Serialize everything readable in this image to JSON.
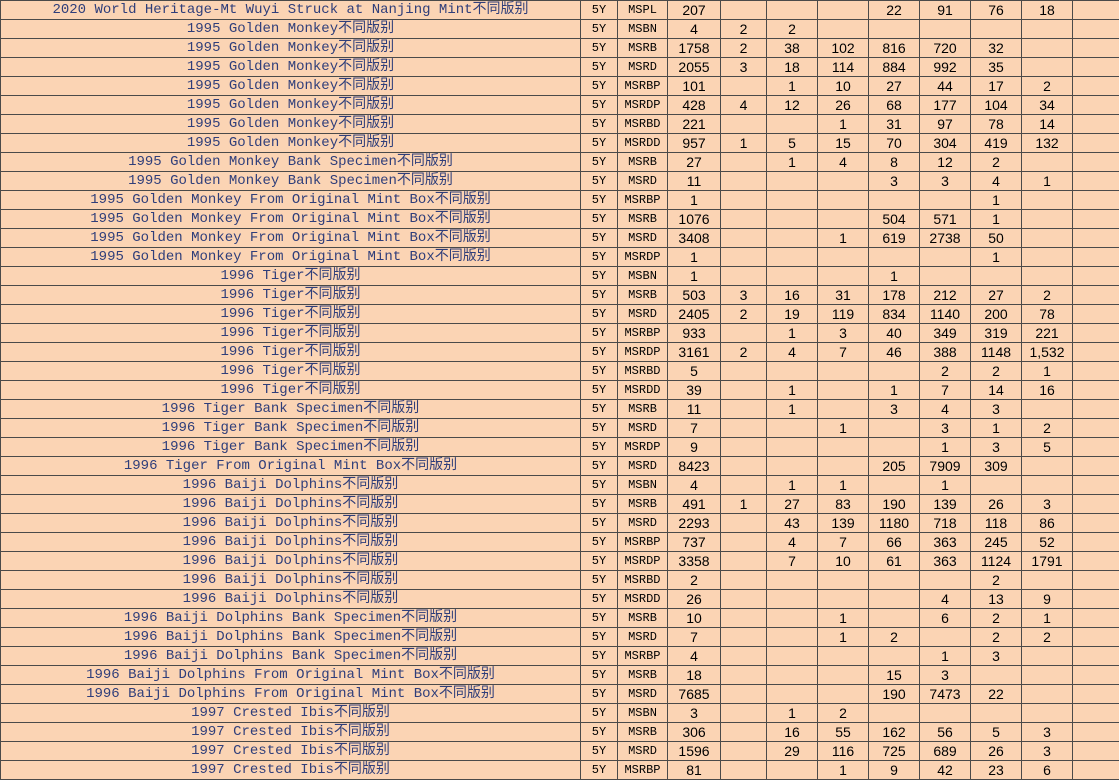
{
  "table": {
    "rows": [
      [
        "2020 World Heritage-Mt Wuyi Struck at Nanjing Mint不同版别",
        "5Y",
        "MSPL",
        "207",
        null,
        null,
        null,
        "22",
        "91",
        "76",
        "18",
        null
      ],
      [
        "1995 Golden Monkey不同版别",
        "5Y",
        "MSBN",
        "4",
        "2",
        "2",
        null,
        null,
        null,
        null,
        null,
        null
      ],
      [
        "1995 Golden Monkey不同版别",
        "5Y",
        "MSRB",
        "1758",
        "2",
        "38",
        "102",
        "816",
        "720",
        "32",
        null,
        null
      ],
      [
        "1995 Golden Monkey不同版别",
        "5Y",
        "MSRD",
        "2055",
        "3",
        "18",
        "114",
        "884",
        "992",
        "35",
        null,
        null
      ],
      [
        "1995 Golden Monkey不同版别",
        "5Y",
        "MSRBP",
        "101",
        null,
        "1",
        "10",
        "27",
        "44",
        "17",
        "2",
        null
      ],
      [
        "1995 Golden Monkey不同版别",
        "5Y",
        "MSRDP",
        "428",
        "4",
        "12",
        "26",
        "68",
        "177",
        "104",
        "34",
        null
      ],
      [
        "1995 Golden Monkey不同版别",
        "5Y",
        "MSRBD",
        "221",
        null,
        null,
        "1",
        "31",
        "97",
        "78",
        "14",
        null
      ],
      [
        "1995 Golden Monkey不同版别",
        "5Y",
        "MSRDD",
        "957",
        "1",
        "5",
        "15",
        "70",
        "304",
        "419",
        "132",
        null
      ],
      [
        "1995 Golden Monkey Bank Specimen不同版别",
        "5Y",
        "MSRB",
        "27",
        null,
        "1",
        "4",
        "8",
        "12",
        "2",
        null,
        null
      ],
      [
        "1995 Golden Monkey Bank Specimen不同版别",
        "5Y",
        "MSRD",
        "11",
        null,
        null,
        null,
        "3",
        "3",
        "4",
        "1",
        null
      ],
      [
        "1995 Golden Monkey From Original Mint Box不同版别",
        "5Y",
        "MSRBP",
        "1",
        null,
        null,
        null,
        null,
        null,
        "1",
        null,
        null
      ],
      [
        "1995 Golden Monkey From Original Mint Box不同版别",
        "5Y",
        "MSRB",
        "1076",
        null,
        null,
        null,
        "504",
        "571",
        "1",
        null,
        null
      ],
      [
        "1995 Golden Monkey From Original Mint Box不同版别",
        "5Y",
        "MSRD",
        "3408",
        null,
        null,
        "1",
        "619",
        "2738",
        "50",
        null,
        null
      ],
      [
        "1995 Golden Monkey From Original Mint Box不同版别",
        "5Y",
        "MSRDP",
        "1",
        null,
        null,
        null,
        null,
        null,
        "1",
        null,
        null
      ],
      [
        "1996 Tiger不同版别",
        "5Y",
        "MSBN",
        "1",
        null,
        null,
        null,
        "1",
        null,
        null,
        null,
        null
      ],
      [
        "1996 Tiger不同版别",
        "5Y",
        "MSRB",
        "503",
        "3",
        "16",
        "31",
        "178",
        "212",
        "27",
        "2",
        null
      ],
      [
        "1996 Tiger不同版别",
        "5Y",
        "MSRD",
        "2405",
        "2",
        "19",
        "119",
        "834",
        "1140",
        "200",
        "78",
        null
      ],
      [
        "1996 Tiger不同版别",
        "5Y",
        "MSRBP",
        "933",
        null,
        "1",
        "3",
        "40",
        "349",
        "319",
        "221",
        null
      ],
      [
        "1996 Tiger不同版别",
        "5Y",
        "MSRDP",
        "3161",
        "2",
        "4",
        "7",
        "46",
        "388",
        "1148",
        "1,532",
        null
      ],
      [
        "1996 Tiger不同版别",
        "5Y",
        "MSRBD",
        "5",
        null,
        null,
        null,
        null,
        "2",
        "2",
        "1",
        null
      ],
      [
        "1996 Tiger不同版别",
        "5Y",
        "MSRDD",
        "39",
        null,
        "1",
        null,
        "1",
        "7",
        "14",
        "16",
        null
      ],
      [
        "1996 Tiger Bank Specimen不同版别",
        "5Y",
        "MSRB",
        "11",
        null,
        "1",
        null,
        "3",
        "4",
        "3",
        null,
        null
      ],
      [
        "1996 Tiger Bank Specimen不同版别",
        "5Y",
        "MSRD",
        "7",
        null,
        null,
        "1",
        null,
        "3",
        "1",
        "2",
        null
      ],
      [
        "1996 Tiger Bank Specimen不同版别",
        "5Y",
        "MSRDP",
        "9",
        null,
        null,
        null,
        null,
        "1",
        "3",
        "5",
        null
      ],
      [
        "1996 Tiger From Original Mint Box不同版别",
        "5Y",
        "MSRD",
        "8423",
        null,
        null,
        null,
        "205",
        "7909",
        "309",
        null,
        null
      ],
      [
        "1996 Baiji Dolphins不同版别",
        "5Y",
        "MSBN",
        "4",
        null,
        "1",
        "1",
        null,
        "1",
        null,
        null,
        null
      ],
      [
        "1996 Baiji Dolphins不同版别",
        "5Y",
        "MSRB",
        "491",
        "1",
        "27",
        "83",
        "190",
        "139",
        "26",
        "3",
        null
      ],
      [
        "1996 Baiji Dolphins不同版别",
        "5Y",
        "MSRD",
        "2293",
        null,
        "43",
        "139",
        "1180",
        "718",
        "118",
        "86",
        null
      ],
      [
        "1996 Baiji Dolphins不同版别",
        "5Y",
        "MSRBP",
        "737",
        null,
        "4",
        "7",
        "66",
        "363",
        "245",
        "52",
        null
      ],
      [
        "1996 Baiji Dolphins不同版别",
        "5Y",
        "MSRDP",
        "3358",
        null,
        "7",
        "10",
        "61",
        "363",
        "1124",
        "1791",
        null
      ],
      [
        "1996 Baiji Dolphins不同版别",
        "5Y",
        "MSRBD",
        "2",
        null,
        null,
        null,
        null,
        null,
        "2",
        null,
        null
      ],
      [
        "1996 Baiji Dolphins不同版别",
        "5Y",
        "MSRDD",
        "26",
        null,
        null,
        null,
        null,
        "4",
        "13",
        "9",
        null
      ],
      [
        "1996 Baiji Dolphins Bank Specimen不同版别",
        "5Y",
        "MSRB",
        "10",
        null,
        null,
        "1",
        null,
        "6",
        "2",
        "1",
        null
      ],
      [
        "1996 Baiji Dolphins Bank Specimen不同版别",
        "5Y",
        "MSRD",
        "7",
        null,
        null,
        "1",
        "2",
        null,
        "2",
        "2",
        null
      ],
      [
        "1996 Baiji Dolphins Bank Specimen不同版别",
        "5Y",
        "MSRBP",
        "4",
        null,
        null,
        null,
        null,
        "1",
        "3",
        null,
        null
      ],
      [
        "1996 Baiji Dolphins From Original Mint Box不同版别",
        "5Y",
        "MSRB",
        "18",
        null,
        null,
        null,
        "15",
        "3",
        null,
        null,
        null
      ],
      [
        "1996 Baiji Dolphins From Original Mint Box不同版别",
        "5Y",
        "MSRD",
        "7685",
        null,
        null,
        null,
        "190",
        "7473",
        "22",
        null,
        null
      ],
      [
        "1997 Crested Ibis不同版别",
        "5Y",
        "MSBN",
        "3",
        null,
        "1",
        "2",
        null,
        null,
        null,
        null,
        null
      ],
      [
        "1997 Crested Ibis不同版别",
        "5Y",
        "MSRB",
        "306",
        null,
        "16",
        "55",
        "162",
        "56",
        "5",
        "3",
        null
      ],
      [
        "1997 Crested Ibis不同版别",
        "5Y",
        "MSRD",
        "1596",
        null,
        "29",
        "116",
        "725",
        "689",
        "26",
        "3",
        null
      ],
      [
        "1997 Crested Ibis不同版别",
        "5Y",
        "MSRBP",
        "81",
        null,
        null,
        "1",
        "9",
        "42",
        "23",
        "6",
        null
      ]
    ]
  }
}
